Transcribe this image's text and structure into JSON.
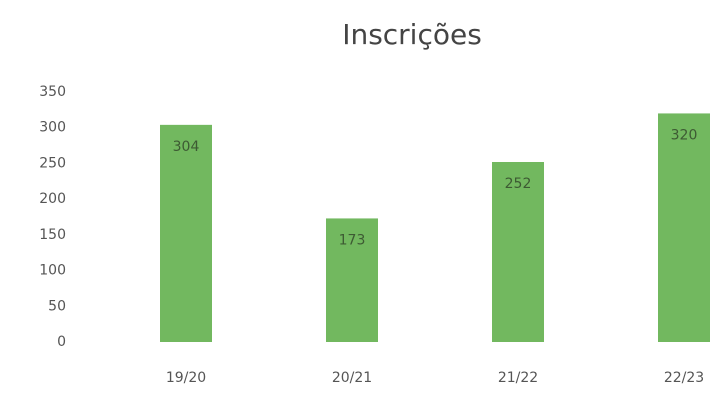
{
  "chart_data": {
    "type": "bar",
    "title": "Inscrições",
    "categories": [
      "19/20",
      "20/21",
      "21/22",
      "22/23"
    ],
    "values": [
      304,
      173,
      252,
      320
    ],
    "color": "#72b85f",
    "ylim": [
      0,
      350
    ],
    "yticks": [
      0,
      50,
      100,
      150,
      200,
      250,
      300,
      350
    ],
    "grid": false
  }
}
